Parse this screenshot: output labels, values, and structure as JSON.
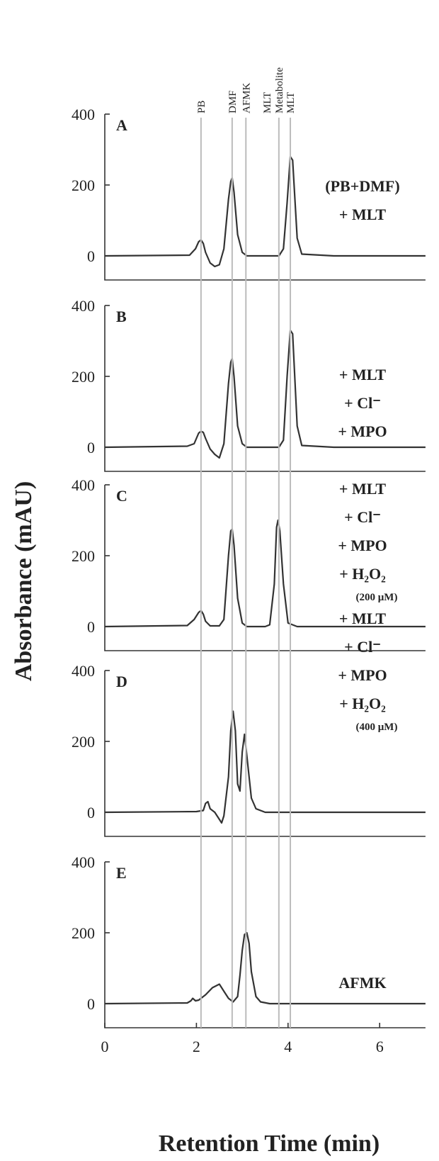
{
  "chart_data": {
    "type": "line",
    "title": "",
    "xlabel": "Retention Time (min)",
    "ylabel": "Absorbance (mAU)",
    "xlim": [
      0,
      7
    ],
    "xticks": [
      "0",
      "2",
      "4",
      "6"
    ],
    "ylim": [
      -80,
      400
    ],
    "yticks": [
      "0",
      "200",
      "400"
    ],
    "grid": false,
    "reference_lines": [
      {
        "label": "PB",
        "x": 2.1
      },
      {
        "label": "DMF",
        "x": 2.78
      },
      {
        "label": "AFMK",
        "x": 3.08
      },
      {
        "label": "MLT Metabolite",
        "x": 3.8
      },
      {
        "label": "MLT",
        "x": 4.05
      }
    ],
    "panels": [
      {
        "letter": "A",
        "conditions": [
          "(PB+DMF)",
          "+ MLT"
        ],
        "note": "",
        "series": {
          "x": [
            0,
            1.85,
            1.98,
            2.05,
            2.1,
            2.15,
            2.2,
            2.3,
            2.4,
            2.5,
            2.6,
            2.7,
            2.75,
            2.78,
            2.82,
            2.9,
            3.0,
            3.1,
            3.5,
            3.8,
            3.9,
            3.98,
            4.05,
            4.1,
            4.15,
            4.2,
            4.3,
            5.0,
            7
          ],
          "y": [
            0,
            2,
            20,
            40,
            45,
            35,
            10,
            -20,
            -30,
            -25,
            20,
            160,
            210,
            220,
            180,
            60,
            10,
            0,
            0,
            0,
            20,
            150,
            280,
            270,
            160,
            50,
            5,
            0,
            0
          ]
        }
      },
      {
        "letter": "B",
        "conditions": [
          "+ MLT",
          "+ Cl⁻",
          "+ MPO"
        ],
        "note": "",
        "series": {
          "x": [
            0,
            1.8,
            1.95,
            2.0,
            2.05,
            2.1,
            2.15,
            2.2,
            2.3,
            2.4,
            2.5,
            2.6,
            2.7,
            2.75,
            2.78,
            2.82,
            2.9,
            3.0,
            3.1,
            3.8,
            3.9,
            3.98,
            4.05,
            4.1,
            4.15,
            4.2,
            4.3,
            5.0,
            7
          ],
          "y": [
            0,
            3,
            10,
            25,
            40,
            45,
            42,
            25,
            -5,
            -20,
            -30,
            10,
            180,
            240,
            250,
            200,
            60,
            10,
            0,
            0,
            20,
            200,
            330,
            320,
            190,
            60,
            5,
            0,
            0
          ]
        }
      },
      {
        "letter": "C",
        "conditions": [
          "+ MLT",
          "+ Cl⁻",
          "+ MPO",
          "+ H₂O₂"
        ],
        "note": "(200 μM)",
        "series": {
          "x": [
            0,
            1.8,
            1.95,
            2.05,
            2.1,
            2.15,
            2.2,
            2.3,
            2.5,
            2.6,
            2.7,
            2.75,
            2.78,
            2.82,
            2.9,
            3.0,
            3.1,
            3.5,
            3.6,
            3.7,
            3.75,
            3.78,
            3.82,
            3.9,
            4.0,
            4.2,
            5.0,
            7
          ],
          "y": [
            0,
            3,
            20,
            40,
            45,
            35,
            15,
            2,
            2,
            20,
            200,
            270,
            275,
            230,
            80,
            10,
            0,
            0,
            5,
            120,
            280,
            300,
            270,
            120,
            10,
            0,
            0,
            0
          ]
        }
      },
      {
        "letter": "D",
        "conditions": [
          "+ MLT",
          "+ Cl⁻",
          "+ MPO",
          "+ H₂O₂"
        ],
        "note": "(400 μM)",
        "series": {
          "x": [
            0,
            2.0,
            2.15,
            2.2,
            2.25,
            2.3,
            2.4,
            2.5,
            2.55,
            2.6,
            2.7,
            2.75,
            2.8,
            2.85,
            2.9,
            2.95,
            3.0,
            3.05,
            3.1,
            3.2,
            3.3,
            3.5,
            7
          ],
          "y": [
            0,
            2,
            5,
            25,
            30,
            10,
            0,
            -20,
            -30,
            -10,
            100,
            230,
            285,
            230,
            80,
            60,
            170,
            220,
            160,
            40,
            10,
            0,
            0
          ]
        }
      },
      {
        "letter": "E",
        "conditions": [
          "AFMK"
        ],
        "note": "",
        "series": {
          "x": [
            0,
            1.8,
            1.88,
            1.92,
            1.98,
            2.05,
            2.2,
            2.35,
            2.5,
            2.6,
            2.7,
            2.8,
            2.9,
            2.95,
            3.0,
            3.05,
            3.1,
            3.15,
            3.2,
            3.3,
            3.4,
            3.6,
            7
          ],
          "y": [
            0,
            2,
            8,
            15,
            8,
            10,
            25,
            45,
            55,
            35,
            15,
            5,
            20,
            80,
            150,
            195,
            200,
            170,
            90,
            20,
            5,
            0,
            0
          ]
        }
      }
    ]
  }
}
